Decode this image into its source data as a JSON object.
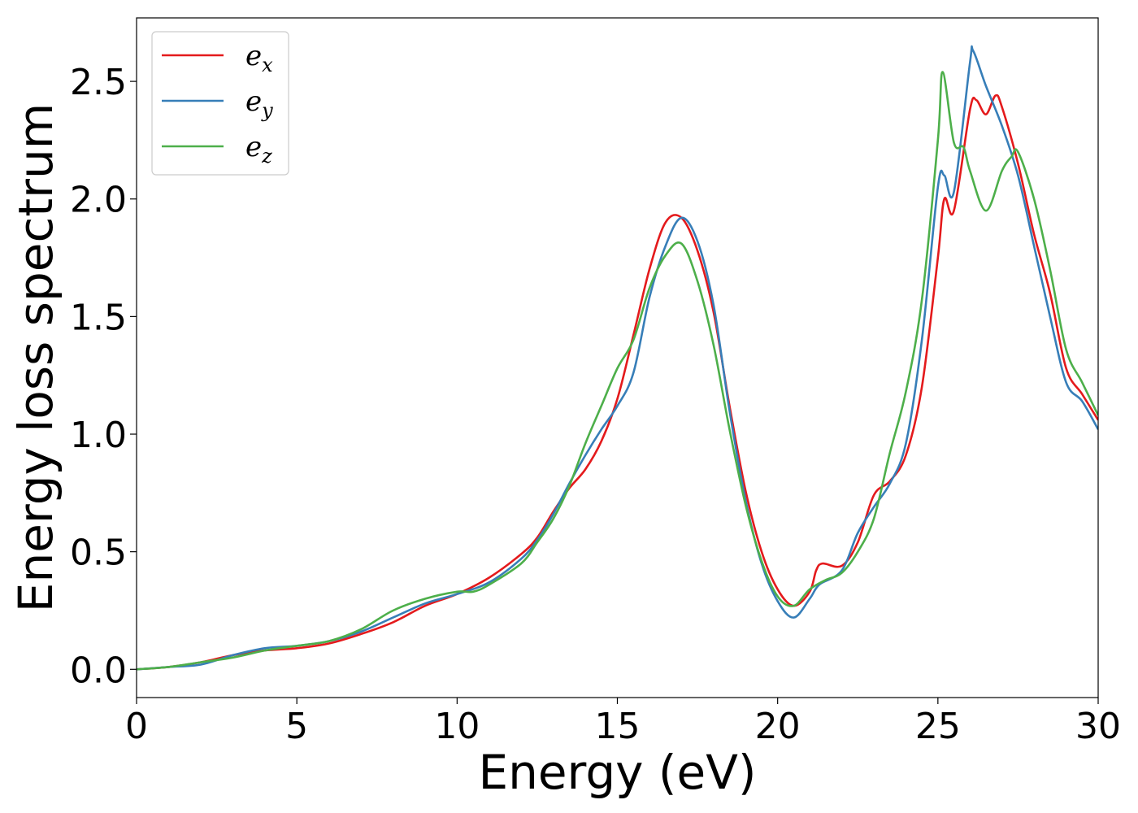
{
  "chart_data": {
    "type": "line",
    "xlabel": "Energy (eV)",
    "ylabel": "Energy loss spectrum",
    "xlim": [
      0,
      30
    ],
    "ylim": [
      -0.12,
      2.77
    ],
    "xticks": [
      "0",
      "5",
      "10",
      "15",
      "20",
      "25",
      "30"
    ],
    "yticks": [
      "0.0",
      "0.5",
      "1.0",
      "1.5",
      "2.0",
      "2.5"
    ],
    "grid": false,
    "legend_position": "top-left",
    "series": [
      {
        "name": "e_x",
        "label_base": "e",
        "label_sub": "x",
        "color": "#e41a1c",
        "points": [
          [
            0,
            0.0
          ],
          [
            1,
            0.01
          ],
          [
            2,
            0.03
          ],
          [
            3,
            0.06
          ],
          [
            4,
            0.08
          ],
          [
            5,
            0.09
          ],
          [
            6,
            0.11
          ],
          [
            7,
            0.15
          ],
          [
            8,
            0.2
          ],
          [
            9,
            0.27
          ],
          [
            10,
            0.32
          ],
          [
            11,
            0.39
          ],
          [
            12,
            0.49
          ],
          [
            12.5,
            0.56
          ],
          [
            13,
            0.67
          ],
          [
            13.5,
            0.77
          ],
          [
            14,
            0.85
          ],
          [
            14.5,
            0.97
          ],
          [
            15,
            1.15
          ],
          [
            15.5,
            1.42
          ],
          [
            16,
            1.7
          ],
          [
            16.5,
            1.9
          ],
          [
            17,
            1.92
          ],
          [
            17.5,
            1.78
          ],
          [
            18,
            1.52
          ],
          [
            18.5,
            1.12
          ],
          [
            19,
            0.76
          ],
          [
            19.5,
            0.5
          ],
          [
            20,
            0.34
          ],
          [
            20.5,
            0.27
          ],
          [
            21,
            0.33
          ],
          [
            21.2,
            0.42
          ],
          [
            21.4,
            0.45
          ],
          [
            22,
            0.44
          ],
          [
            22.5,
            0.54
          ],
          [
            23,
            0.74
          ],
          [
            23.5,
            0.8
          ],
          [
            24,
            0.91
          ],
          [
            24.5,
            1.2
          ],
          [
            25,
            1.75
          ],
          [
            25.2,
            2.0
          ],
          [
            25.5,
            1.95
          ],
          [
            26,
            2.38
          ],
          [
            26.2,
            2.42
          ],
          [
            26.5,
            2.36
          ],
          [
            26.8,
            2.44
          ],
          [
            27,
            2.39
          ],
          [
            27.5,
            2.15
          ],
          [
            28,
            1.85
          ],
          [
            28.5,
            1.6
          ],
          [
            29,
            1.28
          ],
          [
            29.5,
            1.17
          ],
          [
            30,
            1.06
          ]
        ]
      },
      {
        "name": "e_y",
        "label_base": "e",
        "label_sub": "y",
        "color": "#377eb8",
        "points": [
          [
            0,
            0.0
          ],
          [
            1,
            0.01
          ],
          [
            2,
            0.02
          ],
          [
            3,
            0.06
          ],
          [
            4,
            0.09
          ],
          [
            5,
            0.1
          ],
          [
            6,
            0.12
          ],
          [
            7,
            0.16
          ],
          [
            8,
            0.22
          ],
          [
            9,
            0.28
          ],
          [
            10,
            0.32
          ],
          [
            11,
            0.37
          ],
          [
            12,
            0.47
          ],
          [
            12.5,
            0.55
          ],
          [
            13,
            0.66
          ],
          [
            13.5,
            0.79
          ],
          [
            14,
            0.91
          ],
          [
            14.5,
            1.02
          ],
          [
            15,
            1.12
          ],
          [
            15.5,
            1.26
          ],
          [
            16,
            1.58
          ],
          [
            16.5,
            1.8
          ],
          [
            17,
            1.92
          ],
          [
            17.5,
            1.82
          ],
          [
            18,
            1.55
          ],
          [
            18.5,
            1.1
          ],
          [
            19,
            0.72
          ],
          [
            19.5,
            0.45
          ],
          [
            20,
            0.29
          ],
          [
            20.5,
            0.22
          ],
          [
            21,
            0.3
          ],
          [
            21.3,
            0.36
          ],
          [
            22,
            0.42
          ],
          [
            22.5,
            0.58
          ],
          [
            23,
            0.69
          ],
          [
            23.5,
            0.79
          ],
          [
            24,
            0.96
          ],
          [
            24.5,
            1.4
          ],
          [
            25,
            2.05
          ],
          [
            25.2,
            2.1
          ],
          [
            25.5,
            2.03
          ],
          [
            26,
            2.58
          ],
          [
            26.1,
            2.63
          ],
          [
            26.5,
            2.48
          ],
          [
            27,
            2.31
          ],
          [
            27.5,
            2.1
          ],
          [
            28,
            1.8
          ],
          [
            28.5,
            1.5
          ],
          [
            29,
            1.22
          ],
          [
            29.5,
            1.14
          ],
          [
            30,
            1.02
          ]
        ]
      },
      {
        "name": "e_z",
        "label_base": "e",
        "label_sub": "z",
        "color": "#4daf4a",
        "points": [
          [
            0,
            0.0
          ],
          [
            1,
            0.01
          ],
          [
            2,
            0.03
          ],
          [
            3,
            0.05
          ],
          [
            4,
            0.08
          ],
          [
            5,
            0.1
          ],
          [
            6,
            0.12
          ],
          [
            7,
            0.17
          ],
          [
            8,
            0.25
          ],
          [
            9,
            0.3
          ],
          [
            10,
            0.33
          ],
          [
            10.5,
            0.33
          ],
          [
            11,
            0.36
          ],
          [
            12,
            0.45
          ],
          [
            12.5,
            0.54
          ],
          [
            13,
            0.64
          ],
          [
            13.5,
            0.78
          ],
          [
            14,
            0.96
          ],
          [
            14.5,
            1.12
          ],
          [
            15,
            1.28
          ],
          [
            15.5,
            1.4
          ],
          [
            16,
            1.62
          ],
          [
            16.5,
            1.76
          ],
          [
            17,
            1.81
          ],
          [
            17.5,
            1.65
          ],
          [
            18,
            1.38
          ],
          [
            18.5,
            1.02
          ],
          [
            19,
            0.7
          ],
          [
            19.5,
            0.46
          ],
          [
            20,
            0.31
          ],
          [
            20.5,
            0.27
          ],
          [
            21,
            0.34
          ],
          [
            21.5,
            0.38
          ],
          [
            22,
            0.41
          ],
          [
            22.5,
            0.5
          ],
          [
            23,
            0.64
          ],
          [
            23.5,
            0.92
          ],
          [
            24,
            1.18
          ],
          [
            24.5,
            1.57
          ],
          [
            25,
            2.25
          ],
          [
            25.15,
            2.54
          ],
          [
            25.5,
            2.24
          ],
          [
            25.8,
            2.22
          ],
          [
            26,
            2.12
          ],
          [
            26.5,
            1.95
          ],
          [
            27,
            2.12
          ],
          [
            27.3,
            2.18
          ],
          [
            27.5,
            2.2
          ],
          [
            28,
            2.0
          ],
          [
            28.5,
            1.7
          ],
          [
            29,
            1.36
          ],
          [
            29.5,
            1.22
          ],
          [
            30,
            1.08
          ]
        ]
      }
    ]
  }
}
